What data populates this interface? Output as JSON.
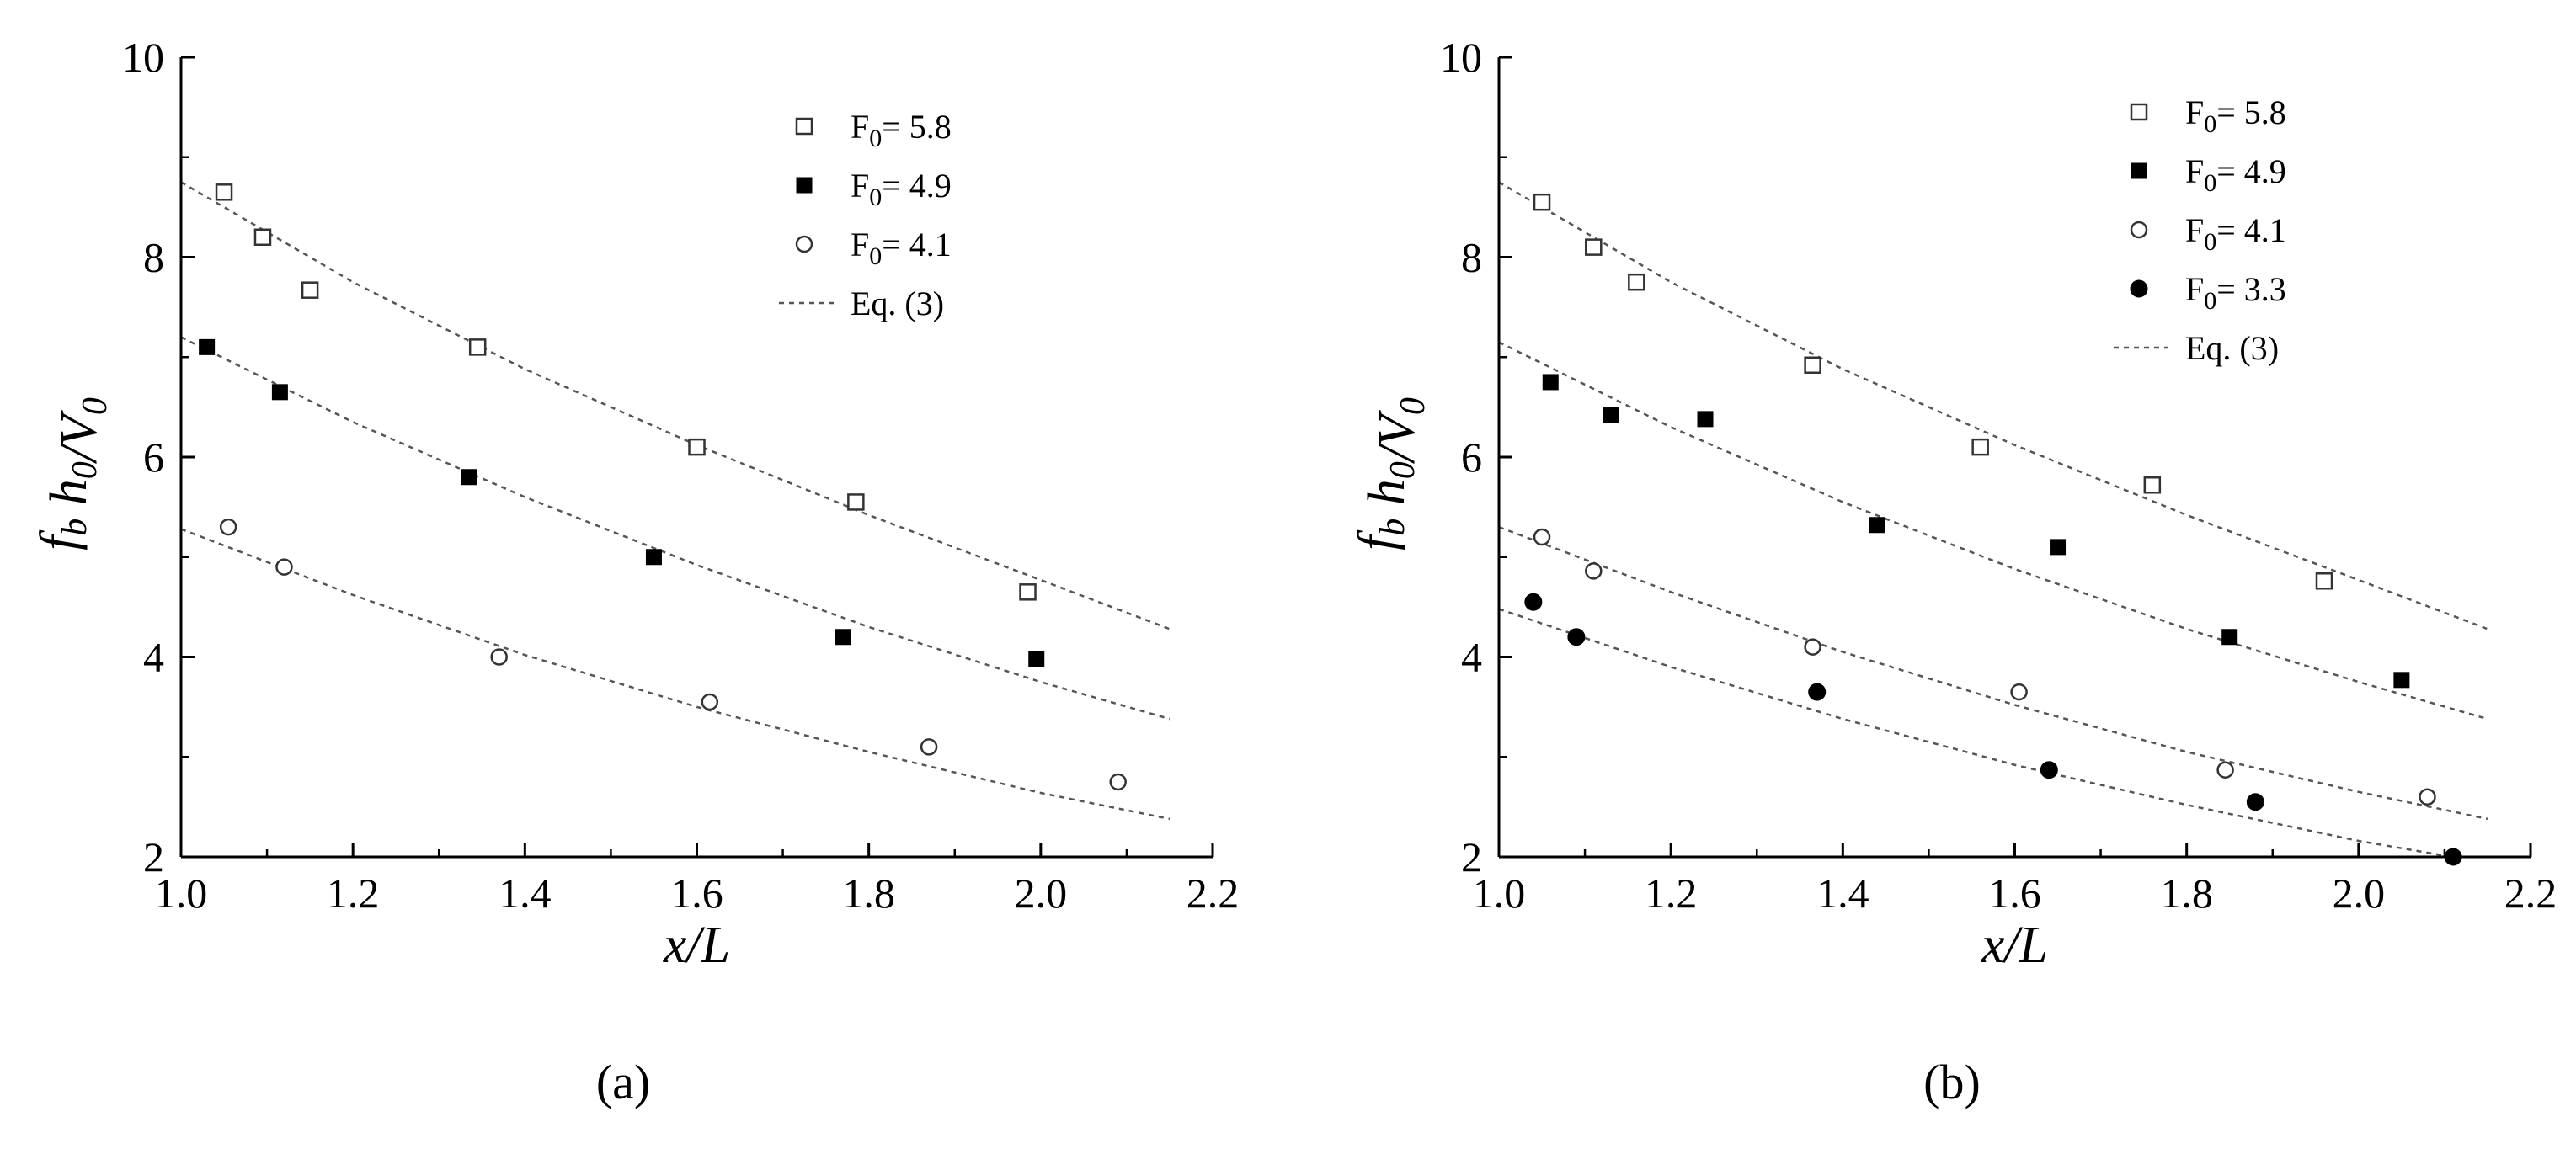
{
  "chart_data": [
    {
      "type": "scatter",
      "panel_label": "(a)",
      "xlim": [
        1.0,
        2.2
      ],
      "ylim": [
        2,
        10
      ],
      "xticks": [
        "1.0",
        "1.2",
        "1.4",
        "1.6",
        "1.8",
        "2.0",
        "2.2"
      ],
      "yticks": [
        "2",
        "4",
        "6",
        "8",
        "10"
      ],
      "xlabel": "x/L",
      "ylabel": "f_b h_0/V_0",
      "legend_position": "top-right",
      "series": [
        {
          "name": "F0 = 5.8",
          "name_main": "F",
          "name_sub": "0",
          "name_rest": "= 5.8",
          "marker": "open-square",
          "points": [
            [
              1.05,
              8.65
            ],
            [
              1.095,
              8.2
            ],
            [
              1.15,
              7.67
            ],
            [
              1.345,
              7.1
            ],
            [
              1.6,
              6.1
            ],
            [
              1.785,
              5.55
            ],
            [
              1.985,
              4.65
            ]
          ]
        },
        {
          "name": "F0 = 4.9",
          "name_main": "F",
          "name_sub": "0",
          "name_rest": "= 4.9",
          "marker": "filled-square",
          "points": [
            [
              1.03,
              7.1
            ],
            [
              1.115,
              6.65
            ],
            [
              1.335,
              5.8
            ],
            [
              1.55,
              5.0
            ],
            [
              1.77,
              4.2
            ],
            [
              1.995,
              3.98
            ]
          ]
        },
        {
          "name": "F0 = 4.1",
          "name_main": "F",
          "name_sub": "0",
          "name_rest": "= 4.1",
          "marker": "open-circle",
          "points": [
            [
              1.055,
              5.3
            ],
            [
              1.12,
              4.9
            ],
            [
              1.37,
              4.0
            ],
            [
              1.615,
              3.55
            ],
            [
              1.87,
              3.1
            ],
            [
              2.09,
              2.75
            ]
          ]
        }
      ],
      "fit_lines": [
        {
          "name": "Eq. (3)",
          "x": [
            1.0,
            1.2,
            1.4,
            1.6,
            1.8,
            2.0,
            2.15
          ],
          "y": [
            8.75,
            7.75,
            6.88,
            6.12,
            5.42,
            4.77,
            4.28
          ]
        },
        {
          "x": [
            1.0,
            1.2,
            1.4,
            1.6,
            1.8,
            2.0,
            2.15
          ],
          "y": [
            7.2,
            6.35,
            5.6,
            4.92,
            4.3,
            3.75,
            3.38
          ]
        },
        {
          "x": [
            1.0,
            1.2,
            1.4,
            1.6,
            1.8,
            2.0,
            2.15
          ],
          "y": [
            5.28,
            4.62,
            4.02,
            3.5,
            3.05,
            2.64,
            2.38
          ]
        }
      ]
    },
    {
      "type": "scatter",
      "panel_label": "(b)",
      "xlim": [
        1.0,
        2.2
      ],
      "ylim": [
        2,
        10
      ],
      "xticks": [
        "1.0",
        "1.2",
        "1.4",
        "1.6",
        "1.8",
        "2.0",
        "2.2"
      ],
      "yticks": [
        "2",
        "4",
        "6",
        "8",
        "10"
      ],
      "xlabel": "x/L",
      "ylabel": "f_b h_0/V_0",
      "legend_position": "top-right",
      "series": [
        {
          "name": "F0 = 5.8",
          "name_main": "F",
          "name_sub": "0",
          "name_rest": "= 5.8",
          "marker": "open-square",
          "points": [
            [
              1.05,
              8.55
            ],
            [
              1.11,
              8.1
            ],
            [
              1.16,
              7.75
            ],
            [
              1.365,
              6.92
            ],
            [
              1.56,
              6.1
            ],
            [
              1.76,
              5.72
            ],
            [
              1.96,
              4.76
            ]
          ]
        },
        {
          "name": "F0 = 4.9",
          "name_main": "F",
          "name_sub": "0",
          "name_rest": "= 4.9",
          "marker": "filled-square",
          "points": [
            [
              1.06,
              6.75
            ],
            [
              1.13,
              6.42
            ],
            [
              1.24,
              6.38
            ],
            [
              1.44,
              5.32
            ],
            [
              1.65,
              5.1
            ],
            [
              1.85,
              4.2
            ],
            [
              2.05,
              3.77
            ]
          ]
        },
        {
          "name": "F0 = 4.1",
          "name_main": "F",
          "name_sub": "0",
          "name_rest": "= 4.1",
          "marker": "open-circle",
          "points": [
            [
              1.05,
              5.2
            ],
            [
              1.11,
              4.86
            ],
            [
              1.365,
              4.1
            ],
            [
              1.605,
              3.65
            ],
            [
              1.845,
              2.87
            ],
            [
              2.08,
              2.6
            ]
          ]
        },
        {
          "name": "F0 = 3.3",
          "name_main": "F",
          "name_sub": "0",
          "name_rest": "= 3.3",
          "marker": "filled-circle",
          "points": [
            [
              1.04,
              4.55
            ],
            [
              1.09,
              4.2
            ],
            [
              1.37,
              3.65
            ],
            [
              1.64,
              2.87
            ],
            [
              1.88,
              2.55
            ],
            [
              2.11,
              2.0
            ]
          ]
        }
      ],
      "fit_lines": [
        {
          "name": "Eq. (3)",
          "x": [
            1.0,
            1.2,
            1.4,
            1.6,
            1.8,
            2.0,
            2.15
          ],
          "y": [
            8.75,
            7.75,
            6.88,
            6.12,
            5.42,
            4.77,
            4.28
          ]
        },
        {
          "x": [
            1.0,
            1.2,
            1.4,
            1.6,
            1.8,
            2.0,
            2.15
          ],
          "y": [
            7.15,
            6.3,
            5.55,
            4.88,
            4.28,
            3.75,
            3.38
          ]
        },
        {
          "x": [
            1.0,
            1.2,
            1.4,
            1.6,
            1.8,
            2.0,
            2.15
          ],
          "y": [
            5.3,
            4.65,
            4.05,
            3.52,
            3.05,
            2.65,
            2.38
          ]
        },
        {
          "x": [
            1.0,
            1.2,
            1.4,
            1.6,
            1.8,
            2.0,
            2.15
          ],
          "y": [
            4.48,
            3.9,
            3.38,
            2.92,
            2.52,
            2.16,
            1.94
          ]
        }
      ]
    }
  ]
}
